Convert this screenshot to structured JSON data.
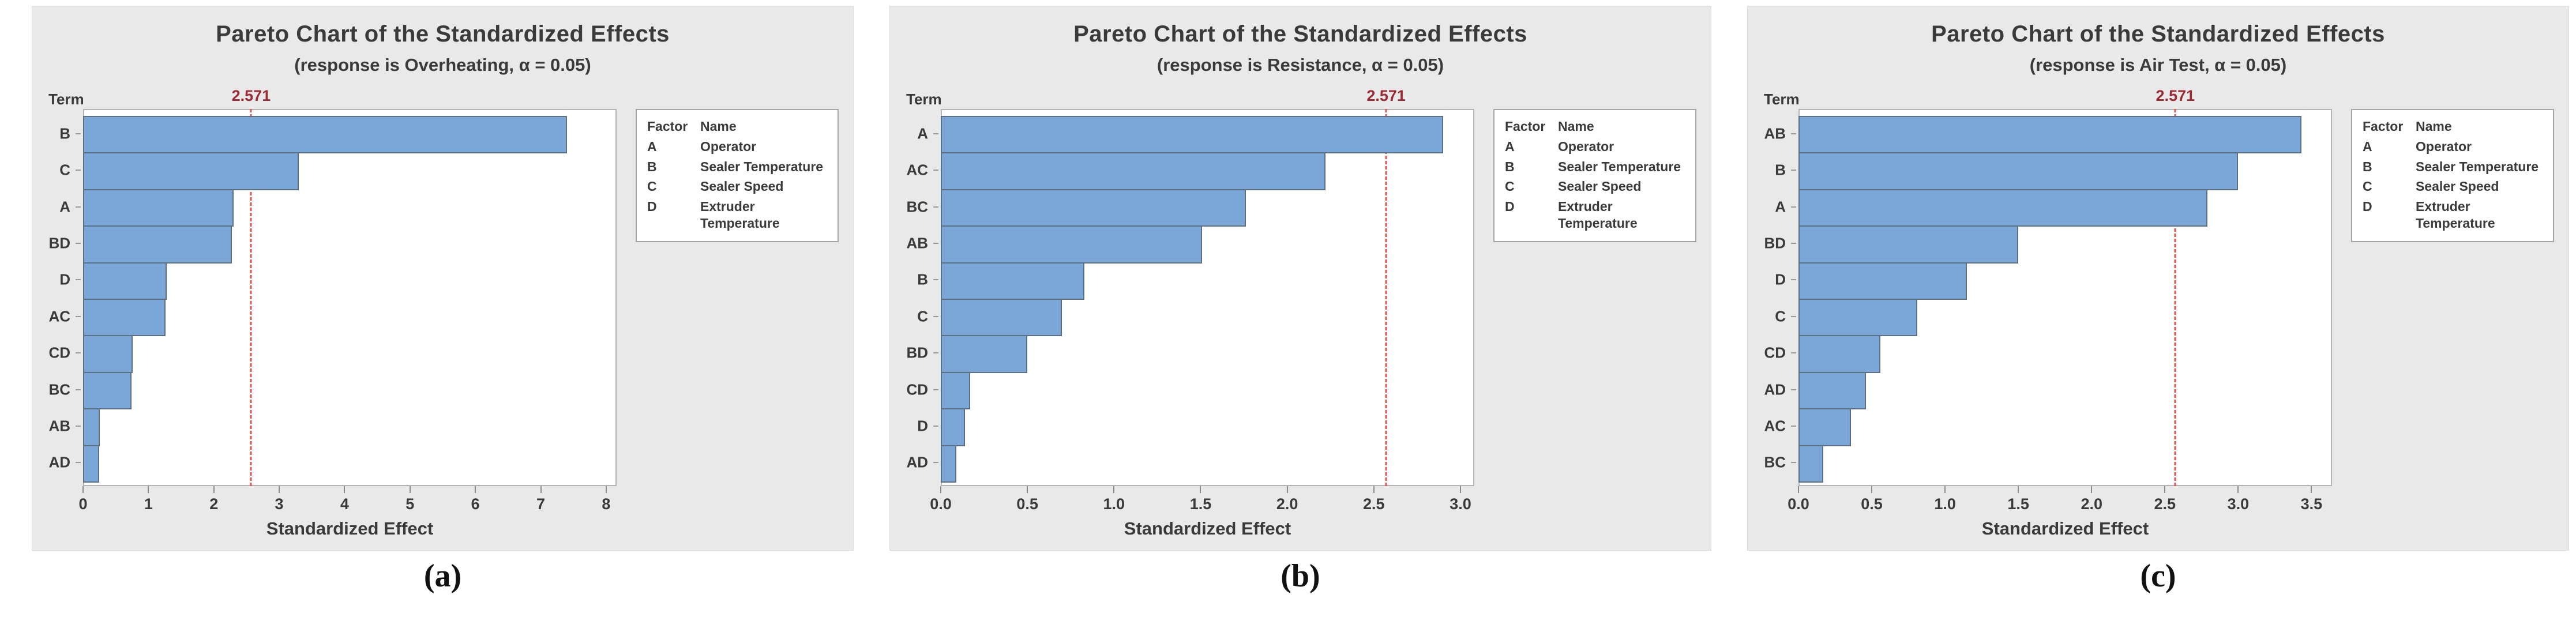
{
  "colors": {
    "panel_background": "#e9e9e9",
    "plot_background": "#ffffff",
    "bar_fill": "#7aa6d8",
    "bar_edge": "#5d7082",
    "reference_line": "#e0524c",
    "reference_label": "#9c2b33",
    "text": "#3a3a3a"
  },
  "legend": {
    "header": [
      "Factor",
      "Name"
    ],
    "rows": [
      [
        "A",
        "Operator"
      ],
      [
        "B",
        "Sealer Temperature"
      ],
      [
        "C",
        "Sealer Speed"
      ],
      [
        "D",
        "Extruder Temperature"
      ]
    ]
  },
  "chart_data": [
    {
      "type": "bar",
      "orientation": "horizontal",
      "caption": "(a)",
      "title": "Pareto Chart of the Standardized Effects",
      "subtitle": "(response is Overheating, α = 0.05)",
      "ylabel": "Term",
      "xlabel": "Standardized Effect",
      "categories": [
        "B",
        "C",
        "A",
        "BD",
        "D",
        "AC",
        "CD",
        "BC",
        "AB",
        "AD"
      ],
      "values": [
        7.4,
        3.3,
        2.3,
        2.28,
        1.28,
        1.26,
        0.76,
        0.74,
        0.26,
        0.25
      ],
      "reference_line": 2.571,
      "reference_label": "2.571",
      "xlim": [
        0,
        8.16
      ],
      "ticks": [
        0,
        1,
        2,
        3,
        4,
        5,
        6,
        7,
        8
      ],
      "tick_labels": [
        "0",
        "1",
        "2",
        "3",
        "4",
        "5",
        "6",
        "7",
        "8"
      ],
      "grid": false,
      "legend_position": "right"
    },
    {
      "type": "bar",
      "orientation": "horizontal",
      "caption": "(b)",
      "title": "Pareto Chart of the Standardized Effects",
      "subtitle": "(response is Resistance, α = 0.05)",
      "ylabel": "Term",
      "xlabel": "Standardized Effect",
      "categories": [
        "A",
        "AC",
        "BC",
        "AB",
        "B",
        "C",
        "BD",
        "CD",
        "D",
        "AD"
      ],
      "values": [
        2.9,
        2.22,
        1.76,
        1.51,
        0.83,
        0.7,
        0.5,
        0.17,
        0.14,
        0.09
      ],
      "reference_line": 2.571,
      "reference_label": "2.571",
      "xlim": [
        0,
        3.08
      ],
      "ticks": [
        0,
        0.5,
        1.0,
        1.5,
        2.0,
        2.5,
        3.0
      ],
      "tick_labels": [
        "0.0",
        "0.5",
        "1.0",
        "1.5",
        "2.0",
        "2.5",
        "3.0"
      ],
      "grid": false,
      "legend_position": "right"
    },
    {
      "type": "bar",
      "orientation": "horizontal",
      "caption": "(c)",
      "title": "Pareto Chart of the Standardized Effects",
      "subtitle": "(response is Air Test, α = 0.05)",
      "ylabel": "Term",
      "xlabel": "Standardized Effect",
      "categories": [
        "AB",
        "B",
        "A",
        "BD",
        "D",
        "C",
        "CD",
        "AD",
        "AC",
        "BC"
      ],
      "values": [
        3.43,
        3.0,
        2.79,
        1.5,
        1.15,
        0.81,
        0.56,
        0.46,
        0.36,
        0.17
      ],
      "reference_line": 2.571,
      "reference_label": "2.571",
      "xlim": [
        0,
        3.64
      ],
      "ticks": [
        0,
        0.5,
        1.0,
        1.5,
        2.0,
        2.5,
        3.0,
        3.5
      ],
      "tick_labels": [
        "0.0",
        "0.5",
        "1.0",
        "1.5",
        "2.0",
        "2.5",
        "3.0",
        "3.5"
      ],
      "grid": false,
      "legend_position": "right"
    }
  ]
}
